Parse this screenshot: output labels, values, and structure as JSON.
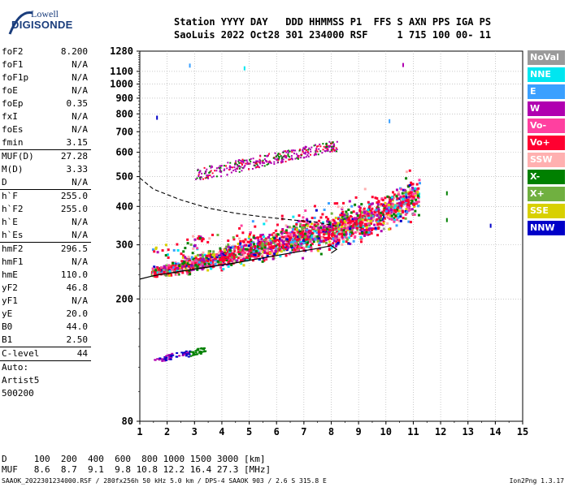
{
  "logo": {
    "top": "Lowell",
    "main": "DIGISONDE"
  },
  "header": {
    "line1": "Station YYYY DAY   DDD HHMMSS P1  FFS S AXN PPS IGA PS",
    "line2": "SaoLuis 2022 Oct28 301 234000 RSF     1 715 100 00- 11"
  },
  "params": [
    {
      "k": "foF2",
      "v": "8.200"
    },
    {
      "k": "foF1",
      "v": "N/A"
    },
    {
      "k": "foF1p",
      "v": "N/A"
    },
    {
      "k": "foE",
      "v": "N/A"
    },
    {
      "k": "foEp",
      "v": "0.35"
    },
    {
      "k": "fxI",
      "v": "N/A"
    },
    {
      "k": "foEs",
      "v": "N/A"
    },
    {
      "k": "fmin",
      "v": "3.15"
    },
    {
      "sep": true
    },
    {
      "k": "MUF(D)",
      "v": "27.28"
    },
    {
      "k": "M(D)",
      "v": "3.33"
    },
    {
      "k": "D",
      "v": "N/A"
    },
    {
      "sep": true
    },
    {
      "k": "h`F",
      "v": "255.0"
    },
    {
      "k": "h`F2",
      "v": "255.0"
    },
    {
      "k": "h`E",
      "v": "N/A"
    },
    {
      "k": "h`Es",
      "v": "N/A"
    },
    {
      "sep": true
    },
    {
      "k": "hmF2",
      "v": "296.5"
    },
    {
      "k": "hmF1",
      "v": "N/A"
    },
    {
      "k": "hmE",
      "v": "110.0"
    },
    {
      "k": "yF2",
      "v": "46.8"
    },
    {
      "k": "yF1",
      "v": "N/A"
    },
    {
      "k": "yE",
      "v": "20.0"
    },
    {
      "k": "B0",
      "v": "44.0"
    },
    {
      "k": "B1",
      "v": "2.50"
    },
    {
      "sep": true
    },
    {
      "k": "C-level",
      "v": "44"
    },
    {
      "sep": true
    },
    {
      "k": "Auto:",
      "v": ""
    },
    {
      "k": "Artist5",
      "v": ""
    },
    {
      "k": "500200",
      "v": ""
    }
  ],
  "legend": [
    {
      "label": "NoVal",
      "color": "#9a9a9a"
    },
    {
      "label": "NNE",
      "color": "#00e6f0"
    },
    {
      "label": "E",
      "color": "#3aa0ff"
    },
    {
      "label": "W",
      "color": "#b000b0"
    },
    {
      "label": "Vo-",
      "color": "#ff40a0"
    },
    {
      "label": "Vo+",
      "color": "#ff0030"
    },
    {
      "label": "SSW",
      "color": "#ffb0b0"
    },
    {
      "label": "X-",
      "color": "#008000"
    },
    {
      "label": "X+",
      "color": "#70b040"
    },
    {
      "label": "SSE",
      "color": "#d8d000"
    },
    {
      "label": "NNW",
      "color": "#0000c8"
    }
  ],
  "muf_table": {
    "line1": "D     100  200  400  600  800 1000 1500 3000 [km]",
    "line2": "MUF   8.6  8.7  9.1  9.8 10.8 12.2 16.4 27.3 [MHz]"
  },
  "footer": {
    "left": "SAAOK_2022301234000.RSF / 280fx256h 50 kHz 5.0 km / DPS-4 SAAOK 903 / 2.6 S 315.8 E",
    "right": "Ion2Png 1.3.17"
  },
  "chart_data": {
    "type": "scatter",
    "x_ticks": [
      "1",
      "2",
      "3",
      "4",
      "5",
      "6",
      "7",
      "8",
      "9",
      "10",
      "11",
      "12",
      "13",
      "14",
      "15"
    ],
    "y_ticks": [
      "80",
      "200",
      "300",
      "400",
      "500",
      "600",
      "700",
      "800",
      "900",
      "1000",
      "1100",
      "1280"
    ],
    "xlim": [
      1,
      15
    ],
    "ylim": [
      80,
      1280
    ],
    "y_scale": "log",
    "grid": true,
    "xlabel": "",
    "ylabel": "",
    "echo_traces": [
      {
        "name": "F2 trace",
        "x": [
          1.4,
          2.0,
          3.0,
          4.0,
          5.0,
          6.0,
          7.0,
          8.0,
          9.0,
          9.8,
          10.5,
          11.0
        ],
        "y": [
          245,
          250,
          262,
          275,
          290,
          305,
          320,
          335,
          355,
          380,
          410,
          430
        ]
      },
      {
        "name": "F2 multi-hop",
        "x": [
          3.0,
          4.0,
          5.0,
          6.0,
          7.0,
          8.0
        ],
        "y": [
          510,
          530,
          555,
          580,
          605,
          630
        ]
      },
      {
        "name": "low-height echoes",
        "x": [
          1.5,
          2.0,
          2.5,
          3.0,
          3.3
        ],
        "y": [
          128,
          130,
          132,
          135,
          137
        ]
      }
    ],
    "model_profile": {
      "x": [
        1.0,
        1.5,
        2.5,
        3.5,
        4.5,
        5.5,
        6.5,
        7.5,
        8.0,
        8.2,
        8.0
      ],
      "y": [
        232,
        238,
        246,
        254,
        262,
        272,
        282,
        292,
        298,
        290,
        282
      ]
    },
    "dashed_profile": {
      "x": [
        1.0,
        1.5,
        2.5,
        3.5,
        4.5,
        5.5,
        6.5,
        7.5,
        8.2
      ],
      "y": [
        495,
        455,
        420,
        395,
        380,
        370,
        362,
        355,
        345
      ]
    },
    "isolated_points": [
      {
        "x": 10.6,
        "y": 1150,
        "color": "#b000b0"
      },
      {
        "x": 2.8,
        "y": 1145,
        "color": "#3aa0ff"
      },
      {
        "x": 4.8,
        "y": 1122,
        "color": "#00e6f0"
      },
      {
        "x": 1.6,
        "y": 775,
        "color": "#0000c8"
      },
      {
        "x": 10.1,
        "y": 755,
        "color": "#3aa0ff"
      },
      {
        "x": 13.8,
        "y": 345,
        "color": "#0000c8"
      },
      {
        "x": 12.2,
        "y": 440,
        "color": "#008000"
      },
      {
        "x": 12.2,
        "y": 360,
        "color": "#008000"
      }
    ]
  }
}
